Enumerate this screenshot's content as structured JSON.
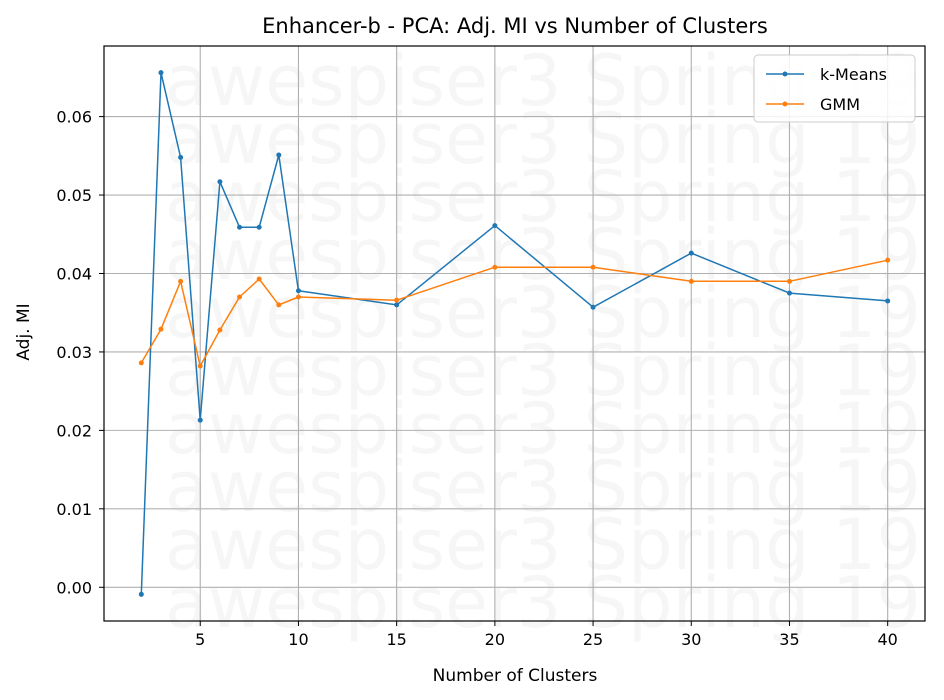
{
  "chart_data": {
    "type": "line",
    "title": "Enhancer-b - PCA: Adj. MI vs Number of Clusters",
    "xlabel": "Number of Clusters",
    "ylabel": "Adj. MI",
    "xlim": [
      0.1,
      41.9
    ],
    "ylim": [
      -0.0043,
      0.069
    ],
    "xticks": [
      5,
      10,
      15,
      20,
      25,
      30,
      35,
      40
    ],
    "yticks": [
      0.0,
      0.01,
      0.02,
      0.03,
      0.04,
      0.05,
      0.06
    ],
    "ytick_labels": [
      "0.00",
      "0.01",
      "0.02",
      "0.03",
      "0.04",
      "0.05",
      "0.06"
    ],
    "grid": true,
    "legend_position": "top-right",
    "x": [
      2,
      3,
      4,
      5,
      6,
      7,
      8,
      9,
      10,
      15,
      20,
      25,
      30,
      35,
      40
    ],
    "series": [
      {
        "name": "k-Means",
        "color": "#1f77b4",
        "values": [
          -0.0009,
          0.0656,
          0.0548,
          0.0213,
          0.0517,
          0.0459,
          0.0459,
          0.0551,
          0.0378,
          0.036,
          0.0461,
          0.0357,
          0.0426,
          0.0375,
          0.0365
        ]
      },
      {
        "name": "GMM",
        "color": "#ff7f0e",
        "values": [
          0.0286,
          0.0329,
          0.039,
          0.0282,
          0.0328,
          0.037,
          0.0393,
          0.036,
          0.037,
          0.0366,
          0.0408,
          0.0408,
          0.039,
          0.039,
          0.0417
        ]
      }
    ],
    "watermark": "awespiser3 Spring 19"
  }
}
